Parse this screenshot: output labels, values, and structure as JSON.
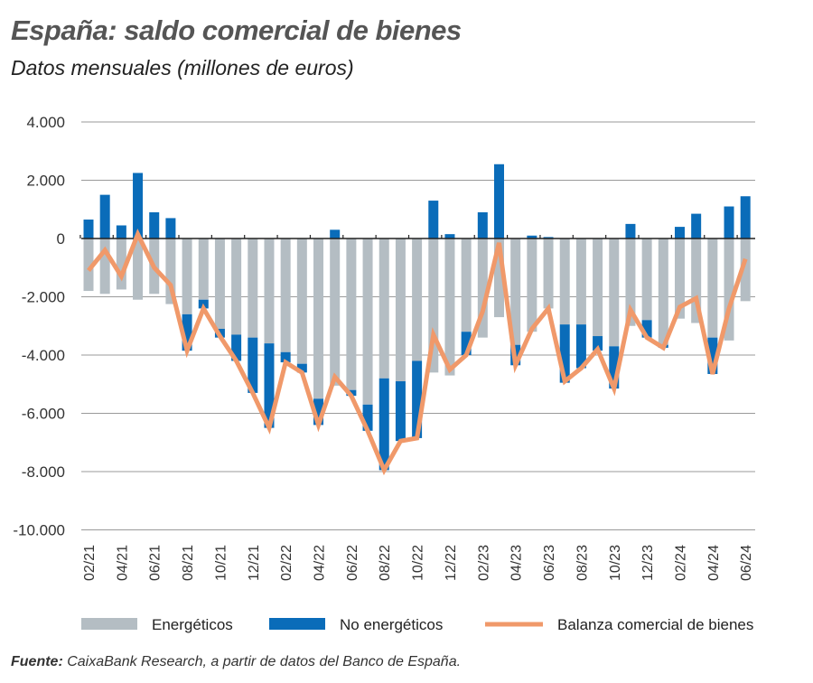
{
  "title": "España: saldo comercial de bienes",
  "subtitle": "Datos mensuales (millones de euros)",
  "source_label": "Fuente:",
  "source_text": " CaixaBank Research, a partir de datos del Banco de España.",
  "chart_data": {
    "type": "bar",
    "stacked": true,
    "ylim": [
      -10000,
      4000
    ],
    "yticks": [
      4000,
      2000,
      0,
      -2000,
      -4000,
      -6000,
      -8000,
      -10000
    ],
    "ytick_labels": [
      "4.000",
      "2.000",
      "0",
      "-2.000",
      "-4.000",
      "-6.000",
      "-8.000",
      "-10.000"
    ],
    "grid": true,
    "legend_position": "bottom",
    "categories": [
      "02/21",
      "03/21",
      "04/21",
      "05/21",
      "06/21",
      "07/21",
      "08/21",
      "09/21",
      "10/21",
      "11/21",
      "12/21",
      "01/22",
      "02/22",
      "03/22",
      "04/22",
      "05/22",
      "06/22",
      "07/22",
      "08/22",
      "09/22",
      "10/22",
      "11/22",
      "12/22",
      "01/23",
      "02/23",
      "03/23",
      "04/23",
      "05/23",
      "06/23",
      "07/23",
      "08/23",
      "09/23",
      "10/23",
      "11/23",
      "12/23",
      "01/24",
      "02/24",
      "03/24",
      "04/24",
      "05/24",
      "06/24"
    ],
    "xtick_labels": [
      "02/21",
      "04/21",
      "06/21",
      "08/21",
      "10/21",
      "12/21",
      "02/22",
      "04/22",
      "06/22",
      "08/22",
      "10/22",
      "12/22",
      "02/23",
      "04/23",
      "06/23",
      "08/23",
      "10/23",
      "12/23",
      "02/24",
      "04/24",
      "06/24"
    ],
    "series": [
      {
        "name": "Energéticos",
        "type": "bar",
        "color": "#b4bdc3",
        "values": [
          -1800,
          -1900,
          -1750,
          -2100,
          -1900,
          -2250,
          -2600,
          -2100,
          -3100,
          -3300,
          -3400,
          -3600,
          -3900,
          -4300,
          -5500,
          -5050,
          -5200,
          -5700,
          -4800,
          -4900,
          -4200,
          -4600,
          -4700,
          -3200,
          -3400,
          -2700,
          -3650,
          -3200,
          -2400,
          -2950,
          -2950,
          -3350,
          -3700,
          -3000,
          -2800,
          -3650,
          -2750,
          -2900,
          -3400,
          -3500,
          -2150
        ]
      },
      {
        "name": "No energéticos",
        "type": "bar",
        "color": "#0a6cb9",
        "values": [
          650,
          1500,
          450,
          2250,
          900,
          700,
          -1250,
          -300,
          -300,
          -900,
          -1900,
          -2900,
          -350,
          -300,
          -900,
          300,
          -200,
          -900,
          -3150,
          -2050,
          -2650,
          1300,
          150,
          -800,
          900,
          2550,
          -700,
          100,
          50,
          -2000,
          -1500,
          -500,
          -1450,
          500,
          -600,
          -100,
          400,
          850,
          -1250,
          1100,
          1450
        ]
      },
      {
        "name": "Balanza comercial de bienes",
        "type": "line",
        "color": "#f0996a",
        "values": [
          -1100,
          -400,
          -1300,
          150,
          -1000,
          -1600,
          -3850,
          -2400,
          -3350,
          -4200,
          -5300,
          -6500,
          -4250,
          -4600,
          -6400,
          -4750,
          -5400,
          -6600,
          -7950,
          -6950,
          -6850,
          -3300,
          -4500,
          -4000,
          -2500,
          -150,
          -4350,
          -3100,
          -2400,
          -4900,
          -4450,
          -3800,
          -5150,
          -2450,
          -3400,
          -3750,
          -2350,
          -2050,
          -4650,
          -2400,
          -700
        ]
      }
    ]
  }
}
